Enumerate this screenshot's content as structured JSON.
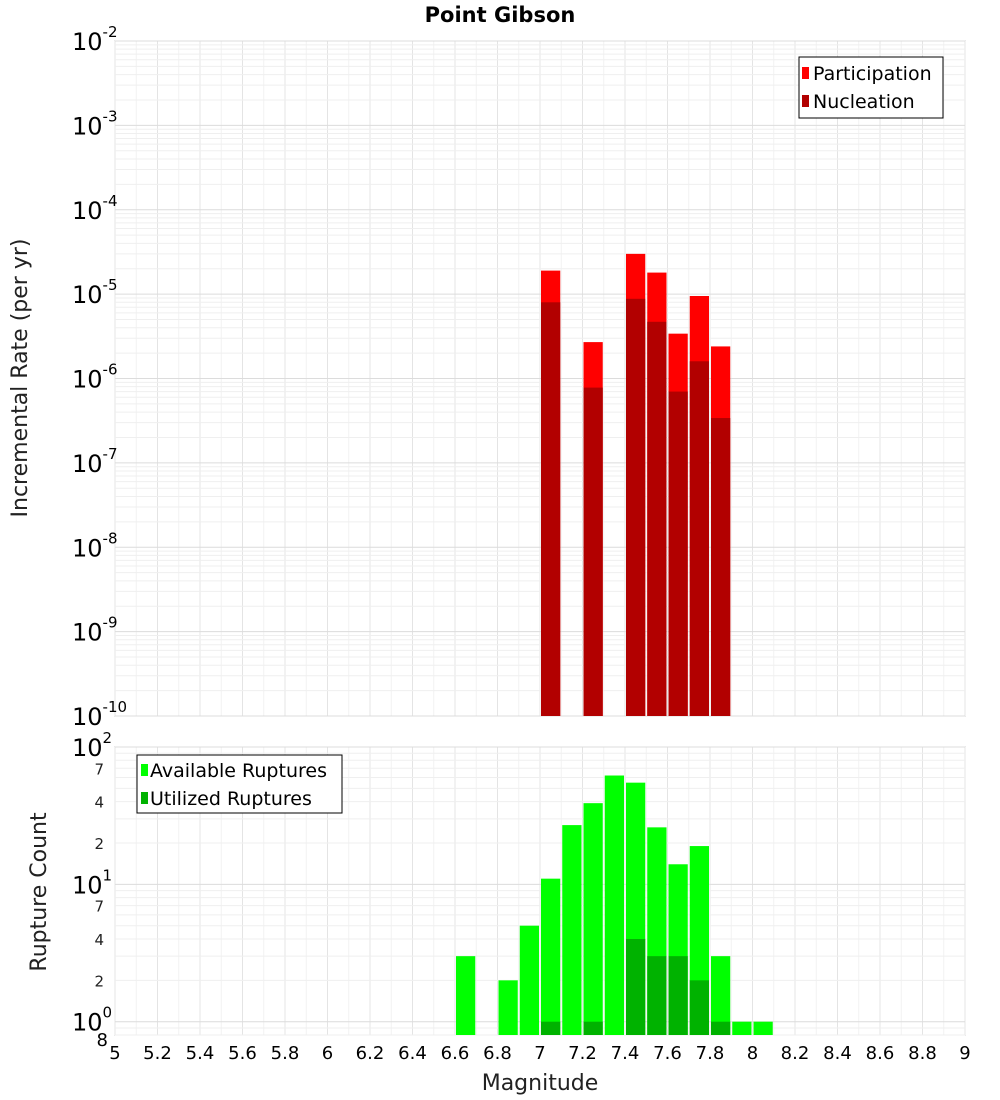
{
  "chart_data": [
    {
      "type": "bar",
      "title": "Point Gibson",
      "xlabel": "",
      "ylabel": "Incremental Rate (per yr)",
      "yscale": "log",
      "xlim": [
        5,
        9
      ],
      "ylim": [
        1e-10,
        0.01
      ],
      "ytick_labels": [
        {
          "base": "10",
          "exp": "-2"
        },
        {
          "base": "10",
          "exp": "-3"
        },
        {
          "base": "10",
          "exp": "-4"
        },
        {
          "base": "10",
          "exp": "-5"
        },
        {
          "base": "10",
          "exp": "-6"
        },
        {
          "base": "10",
          "exp": "-7"
        },
        {
          "base": "10",
          "exp": "-8"
        },
        {
          "base": "10",
          "exp": "-9"
        },
        {
          "base": "10",
          "exp": "-10"
        }
      ],
      "legend": {
        "position": "top-right",
        "entries": [
          "Participation",
          "Nucleation"
        ]
      },
      "colors": {
        "Participation": "#ff0000",
        "Nucleation": "#b20000"
      },
      "series": [
        {
          "name": "Participation",
          "x": [
            7.05,
            7.25,
            7.45,
            7.55,
            7.65,
            7.75,
            7.85
          ],
          "values": [
            1.9e-05,
            2.7e-06,
            3e-05,
            1.8e-05,
            3.4e-06,
            9.5e-06,
            2.4e-06
          ]
        },
        {
          "name": "Nucleation",
          "x": [
            7.05,
            7.25,
            7.45,
            7.55,
            7.65,
            7.75,
            7.85
          ],
          "values": [
            8e-06,
            7.8e-07,
            8.8e-06,
            4.7e-06,
            7e-07,
            1.6e-06,
            3.4e-07
          ]
        }
      ]
    },
    {
      "type": "bar",
      "xlabel": "Magnitude",
      "ylabel": "Rupture Count",
      "yscale": "log",
      "xlim": [
        5,
        9
      ],
      "ylim": [
        0.8,
        100
      ],
      "x_tick_labels": [
        "5",
        "5.2",
        "5.4",
        "5.6",
        "5.8",
        "6",
        "6.2",
        "6.4",
        "6.6",
        "6.8",
        "7",
        "7.2",
        "7.4",
        "7.6",
        "7.8",
        "8",
        "8.2",
        "8.4",
        "8.6",
        "8.8",
        "9"
      ],
      "ytick_labels": [
        {
          "base": "10",
          "exp": "2"
        },
        {
          "base": "10",
          "exp": "1"
        },
        {
          "base": "10",
          "exp": "0"
        }
      ],
      "ymin_label": "8",
      "minor_tick_labels": [
        {
          "v": 70,
          "label": "7"
        },
        {
          "v": 40,
          "label": "4"
        },
        {
          "v": 20,
          "label": "2"
        },
        {
          "v": 7,
          "label": "7"
        },
        {
          "v": 4,
          "label": "4"
        },
        {
          "v": 2,
          "label": "2"
        }
      ],
      "legend": {
        "position": "top-left",
        "entries": [
          "Available Ruptures",
          "Utilized Ruptures"
        ]
      },
      "colors": {
        "Available Ruptures": "#00ff00",
        "Utilized Ruptures": "#00b200"
      },
      "series": [
        {
          "name": "Available Ruptures",
          "x": [
            6.65,
            6.85,
            6.95,
            7.05,
            7.15,
            7.25,
            7.35,
            7.45,
            7.55,
            7.65,
            7.75,
            7.85,
            7.95,
            8.05
          ],
          "values": [
            3,
            2,
            5,
            11,
            27,
            39,
            62,
            55,
            26,
            14,
            19,
            3,
            1,
            1
          ]
        },
        {
          "name": "Utilized Ruptures",
          "x": [
            7.05,
            7.25,
            7.45,
            7.55,
            7.65,
            7.75,
            7.85
          ],
          "values": [
            1,
            1,
            4,
            3,
            3,
            2,
            1
          ]
        }
      ]
    }
  ]
}
